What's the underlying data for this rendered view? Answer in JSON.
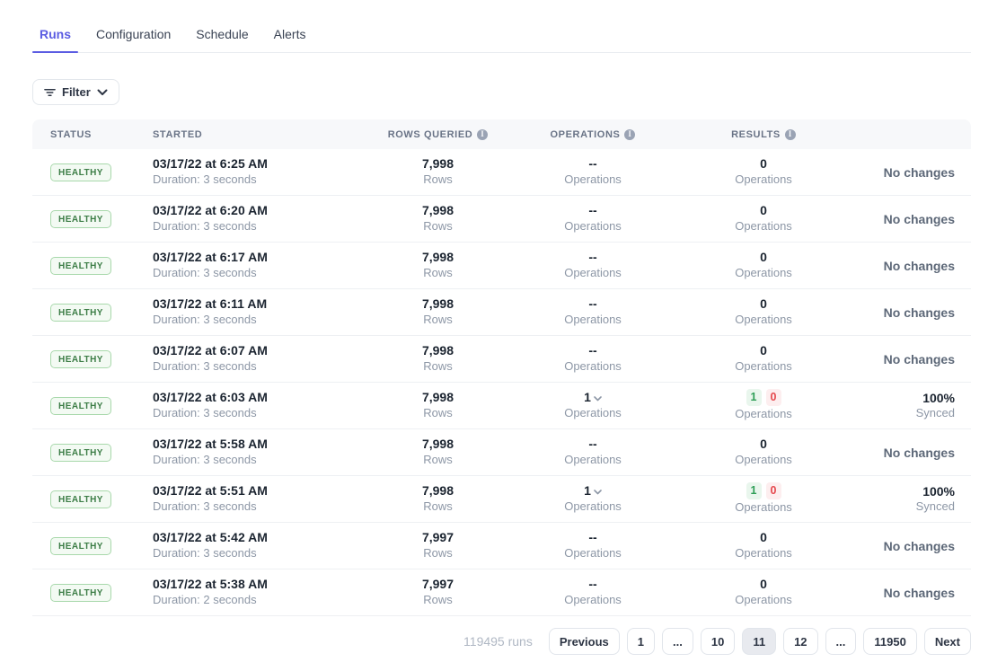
{
  "tabs": [
    {
      "label": "Runs",
      "active": true
    },
    {
      "label": "Configuration",
      "active": false
    },
    {
      "label": "Schedule",
      "active": false
    },
    {
      "label": "Alerts",
      "active": false
    }
  ],
  "filter": {
    "label": "Filter"
  },
  "table": {
    "columns": [
      {
        "label": "Status",
        "info": false,
        "align": "left c-status"
      },
      {
        "label": "Started",
        "info": false,
        "align": "left"
      },
      {
        "label": "Rows queried",
        "info": true,
        "align": "center"
      },
      {
        "label": "Operations",
        "info": true,
        "align": "center"
      },
      {
        "label": "Results",
        "info": true,
        "align": "center"
      },
      {
        "label": "",
        "info": false,
        "align": "center"
      }
    ],
    "rows": [
      {
        "status": "HEALTHY",
        "started": "03/17/22 at 6:25 AM",
        "duration": "Duration: 3 seconds",
        "rows_queried": "7,998",
        "rows_label": "Rows",
        "operations": "--",
        "operations_expandable": false,
        "operations_label": "Operations",
        "results_value": "0",
        "results_ok": null,
        "results_fail": null,
        "results_label": "Operations",
        "summary": "No changes",
        "summary_sub": null
      },
      {
        "status": "HEALTHY",
        "started": "03/17/22 at 6:20 AM",
        "duration": "Duration: 3 seconds",
        "rows_queried": "7,998",
        "rows_label": "Rows",
        "operations": "--",
        "operations_expandable": false,
        "operations_label": "Operations",
        "results_value": "0",
        "results_ok": null,
        "results_fail": null,
        "results_label": "Operations",
        "summary": "No changes",
        "summary_sub": null
      },
      {
        "status": "HEALTHY",
        "started": "03/17/22 at 6:17 AM",
        "duration": "Duration: 3 seconds",
        "rows_queried": "7,998",
        "rows_label": "Rows",
        "operations": "--",
        "operations_expandable": false,
        "operations_label": "Operations",
        "results_value": "0",
        "results_ok": null,
        "results_fail": null,
        "results_label": "Operations",
        "summary": "No changes",
        "summary_sub": null
      },
      {
        "status": "HEALTHY",
        "started": "03/17/22 at 6:11 AM",
        "duration": "Duration: 3 seconds",
        "rows_queried": "7,998",
        "rows_label": "Rows",
        "operations": "--",
        "operations_expandable": false,
        "operations_label": "Operations",
        "results_value": "0",
        "results_ok": null,
        "results_fail": null,
        "results_label": "Operations",
        "summary": "No changes",
        "summary_sub": null
      },
      {
        "status": "HEALTHY",
        "started": "03/17/22 at 6:07 AM",
        "duration": "Duration: 3 seconds",
        "rows_queried": "7,998",
        "rows_label": "Rows",
        "operations": "--",
        "operations_expandable": false,
        "operations_label": "Operations",
        "results_value": "0",
        "results_ok": null,
        "results_fail": null,
        "results_label": "Operations",
        "summary": "No changes",
        "summary_sub": null
      },
      {
        "status": "HEALTHY",
        "started": "03/17/22 at 6:03 AM",
        "duration": "Duration: 3 seconds",
        "rows_queried": "7,998",
        "rows_label": "Rows",
        "operations": "1",
        "operations_expandable": true,
        "operations_label": "Operations",
        "results_value": null,
        "results_ok": "1",
        "results_fail": "0",
        "results_label": "Operations",
        "summary": "100%",
        "summary_sub": "Synced"
      },
      {
        "status": "HEALTHY",
        "started": "03/17/22 at 5:58 AM",
        "duration": "Duration: 3 seconds",
        "rows_queried": "7,998",
        "rows_label": "Rows",
        "operations": "--",
        "operations_expandable": false,
        "operations_label": "Operations",
        "results_value": "0",
        "results_ok": null,
        "results_fail": null,
        "results_label": "Operations",
        "summary": "No changes",
        "summary_sub": null
      },
      {
        "status": "HEALTHY",
        "started": "03/17/22 at 5:51 AM",
        "duration": "Duration: 3 seconds",
        "rows_queried": "7,998",
        "rows_label": "Rows",
        "operations": "1",
        "operations_expandable": true,
        "operations_label": "Operations",
        "results_value": null,
        "results_ok": "1",
        "results_fail": "0",
        "results_label": "Operations",
        "summary": "100%",
        "summary_sub": "Synced"
      },
      {
        "status": "HEALTHY",
        "started": "03/17/22 at 5:42 AM",
        "duration": "Duration: 3 seconds",
        "rows_queried": "7,997",
        "rows_label": "Rows",
        "operations": "--",
        "operations_expandable": false,
        "operations_label": "Operations",
        "results_value": "0",
        "results_ok": null,
        "results_fail": null,
        "results_label": "Operations",
        "summary": "No changes",
        "summary_sub": null
      },
      {
        "status": "HEALTHY",
        "started": "03/17/22 at 5:38 AM",
        "duration": "Duration: 2 seconds",
        "rows_queried": "7,997",
        "rows_label": "Rows",
        "operations": "--",
        "operations_expandable": false,
        "operations_label": "Operations",
        "results_value": "0",
        "results_ok": null,
        "results_fail": null,
        "results_label": "Operations",
        "summary": "No changes",
        "summary_sub": null
      }
    ]
  },
  "pagination": {
    "total_label": "119495 runs",
    "buttons": [
      {
        "label": "Previous",
        "active": false
      },
      {
        "label": "1",
        "active": false
      },
      {
        "label": "...",
        "active": false
      },
      {
        "label": "10",
        "active": false
      },
      {
        "label": "11",
        "active": true
      },
      {
        "label": "12",
        "active": false
      },
      {
        "label": "...",
        "active": false
      },
      {
        "label": "11950",
        "active": false
      },
      {
        "label": "Next",
        "active": false
      }
    ]
  },
  "colors": {
    "accent": "#5b5ce2",
    "healthy_text": "#3c7d46",
    "healthy_border": "#a8d8ab",
    "healthy_bg": "#f3faf3",
    "success": "#2f9e57",
    "error": "#e5484d",
    "header_bg": "#f7f8fa"
  }
}
